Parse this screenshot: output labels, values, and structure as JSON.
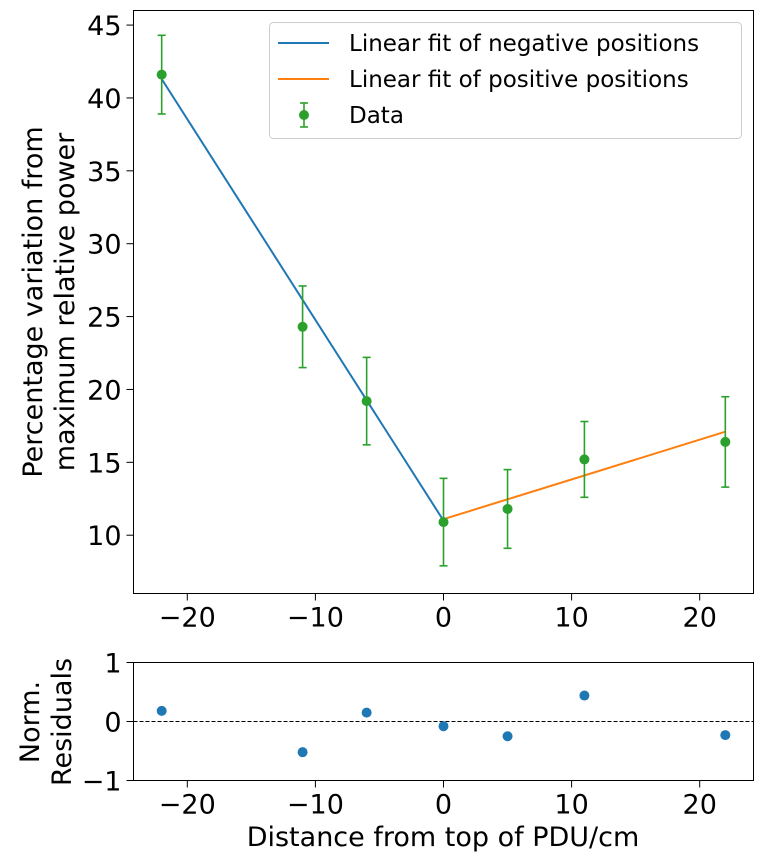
{
  "chart_data": [
    {
      "type": "line",
      "ylabel_lines": [
        "Percentage variation from",
        "maximum relative power"
      ],
      "xlim": [
        -24.2,
        24.2
      ],
      "ylim": [
        6.0,
        46.0
      ],
      "xticks": [
        -20,
        -10,
        0,
        10,
        20
      ],
      "xtick_labels": [
        "−20",
        "−10",
        "0",
        "10",
        "20"
      ],
      "yticks": [
        10,
        15,
        20,
        25,
        30,
        35,
        40,
        45
      ],
      "ytick_labels": [
        "10",
        "15",
        "20",
        "25",
        "30",
        "35",
        "40",
        "45"
      ],
      "legend_position": "top-right",
      "series": [
        {
          "name": "Linear fit of negative positions",
          "color": "#1f77b4",
          "kind": "line",
          "x": [
            -22,
            0
          ],
          "y": [
            41.3,
            11.0
          ]
        },
        {
          "name": "Linear fit of positive positions",
          "color": "#ff7f0e",
          "kind": "line",
          "x": [
            0,
            22
          ],
          "y": [
            11.1,
            17.1
          ]
        },
        {
          "name": "Data",
          "color": "#2ca02c",
          "kind": "errorbar",
          "x": [
            -22,
            -11,
            -6,
            0,
            5,
            11,
            22
          ],
          "y": [
            41.6,
            24.3,
            19.2,
            10.9,
            11.8,
            15.2,
            16.4
          ],
          "yerr": [
            2.7,
            2.8,
            3.0,
            3.0,
            2.7,
            2.6,
            3.1
          ]
        }
      ]
    },
    {
      "type": "scatter",
      "xlabel": "Distance from top of PDU/cm",
      "ylabel_lines": [
        "Norm.",
        "Residuals"
      ],
      "xlim": [
        -24.2,
        24.2
      ],
      "ylim": [
        -1,
        1
      ],
      "xticks": [
        -20,
        -10,
        0,
        10,
        20
      ],
      "xtick_labels": [
        "−20",
        "−10",
        "0",
        "10",
        "20"
      ],
      "yticks": [
        -1,
        0,
        1
      ],
      "ytick_labels": [
        "−1",
        "0",
        "1"
      ],
      "reference_line": 0,
      "series": [
        {
          "color": "#1f77b4",
          "x": [
            -22,
            -11,
            -6,
            0,
            5,
            11,
            22
          ],
          "y": [
            0.18,
            -0.52,
            0.15,
            -0.08,
            -0.25,
            0.44,
            -0.23
          ]
        }
      ]
    }
  ]
}
